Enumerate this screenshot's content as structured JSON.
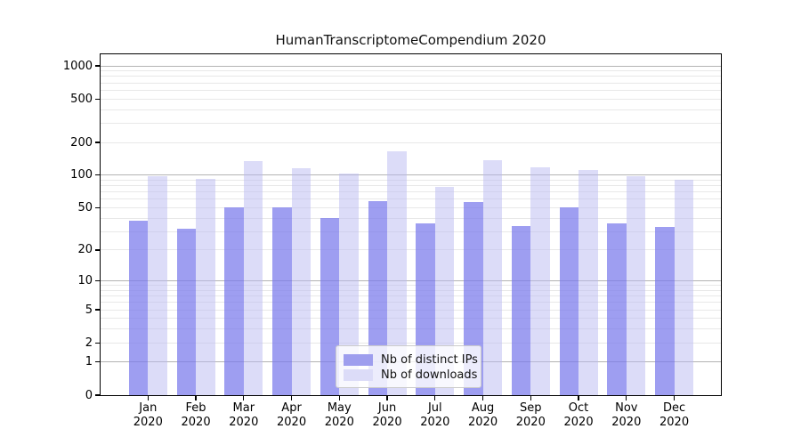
{
  "title": "HumanTranscriptomeCompendium 2020",
  "colors": {
    "bar_dark": "#9e9eee",
    "bar_dark_fill": "rgba(121,121,235,0.72)",
    "bar_light": "#dcdcf8",
    "bar_light_fill": "rgba(185,185,242,0.5)",
    "grid_major": "#b3b3b3",
    "grid_minor": "#e8e8e8",
    "axis": "#000000",
    "legend_border": "#cccccc",
    "background": "#ffffff"
  },
  "chart_data": {
    "type": "bar",
    "title": "HumanTranscriptomeCompendium 2020",
    "categories": [
      "Jan",
      "Feb",
      "Mar",
      "Apr",
      "May",
      "Jun",
      "Jul",
      "Aug",
      "Sep",
      "Oct",
      "Nov",
      "Dec"
    ],
    "x_tick_second_line": "2020",
    "series": [
      {
        "name": "Nb of distinct IPs",
        "color": "#9e9eee",
        "values": [
          38,
          32,
          50,
          50,
          40,
          58,
          36,
          57,
          34,
          50,
          36,
          33
        ]
      },
      {
        "name": "Nb of downloads",
        "color": "#dcdcf8",
        "values": [
          98,
          92,
          135,
          115,
          103,
          165,
          78,
          138,
          118,
          112,
          97,
          91
        ]
      }
    ],
    "xlabel": "",
    "ylabel": "",
    "y_ticks": [
      0,
      1,
      2,
      5,
      10,
      20,
      50,
      100,
      200,
      500,
      1000
    ],
    "y_scale": "log10(value+1), linear tick at 0",
    "ylim": [
      0,
      1276
    ],
    "grid": true,
    "grid_major_values": [
      1,
      10,
      100,
      1000
    ],
    "legend_position": "lower center"
  }
}
